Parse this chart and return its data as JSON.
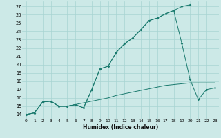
{
  "xlabel": "Humidex (Indice chaleur)",
  "bg_color": "#cce9e7",
  "grid_color": "#a8d4d2",
  "line_color": "#1a7a6e",
  "xlim": [
    -0.5,
    23.5
  ],
  "ylim": [
    13.5,
    27.6
  ],
  "xticks": [
    0,
    1,
    2,
    3,
    4,
    5,
    6,
    7,
    8,
    9,
    10,
    11,
    12,
    13,
    14,
    15,
    16,
    17,
    18,
    19,
    20,
    21,
    22,
    23
  ],
  "yticks": [
    14,
    15,
    16,
    17,
    18,
    19,
    20,
    21,
    22,
    23,
    24,
    25,
    26,
    27
  ],
  "s1_x": [
    0,
    1,
    2,
    3,
    4,
    5,
    6,
    7,
    8,
    9,
    10,
    11,
    12,
    13,
    14,
    15,
    16,
    17,
    18,
    19,
    20
  ],
  "s1_y": [
    14.0,
    14.2,
    15.5,
    15.6,
    15.0,
    15.0,
    15.2,
    14.8,
    17.0,
    19.5,
    19.8,
    21.5,
    22.5,
    23.2,
    24.2,
    25.3,
    25.6,
    26.1,
    26.5,
    27.0,
    27.2
  ],
  "s2_x": [
    0,
    1,
    2,
    3,
    4,
    5,
    6,
    7,
    8,
    9,
    10,
    11,
    12,
    13,
    14,
    15,
    16,
    17,
    18,
    19,
    20,
    21,
    22,
    23
  ],
  "s2_y": [
    14.0,
    14.2,
    15.5,
    15.6,
    15.0,
    15.0,
    15.2,
    15.4,
    15.6,
    15.8,
    16.0,
    16.3,
    16.5,
    16.7,
    16.9,
    17.1,
    17.3,
    17.5,
    17.6,
    17.7,
    17.8,
    17.8,
    17.8,
    17.8
  ],
  "s3_x": [
    0,
    1,
    2,
    3,
    4,
    5,
    6,
    7,
    8,
    9,
    10,
    11,
    12,
    13,
    14,
    15,
    16,
    17,
    18,
    19,
    20,
    21,
    22,
    23
  ],
  "s3_y": [
    14.0,
    14.2,
    15.5,
    15.6,
    15.0,
    15.0,
    15.2,
    14.8,
    17.0,
    19.5,
    19.8,
    21.5,
    22.5,
    23.2,
    24.2,
    25.3,
    25.6,
    26.1,
    26.5,
    22.5,
    18.2,
    15.8,
    17.0,
    17.2
  ]
}
